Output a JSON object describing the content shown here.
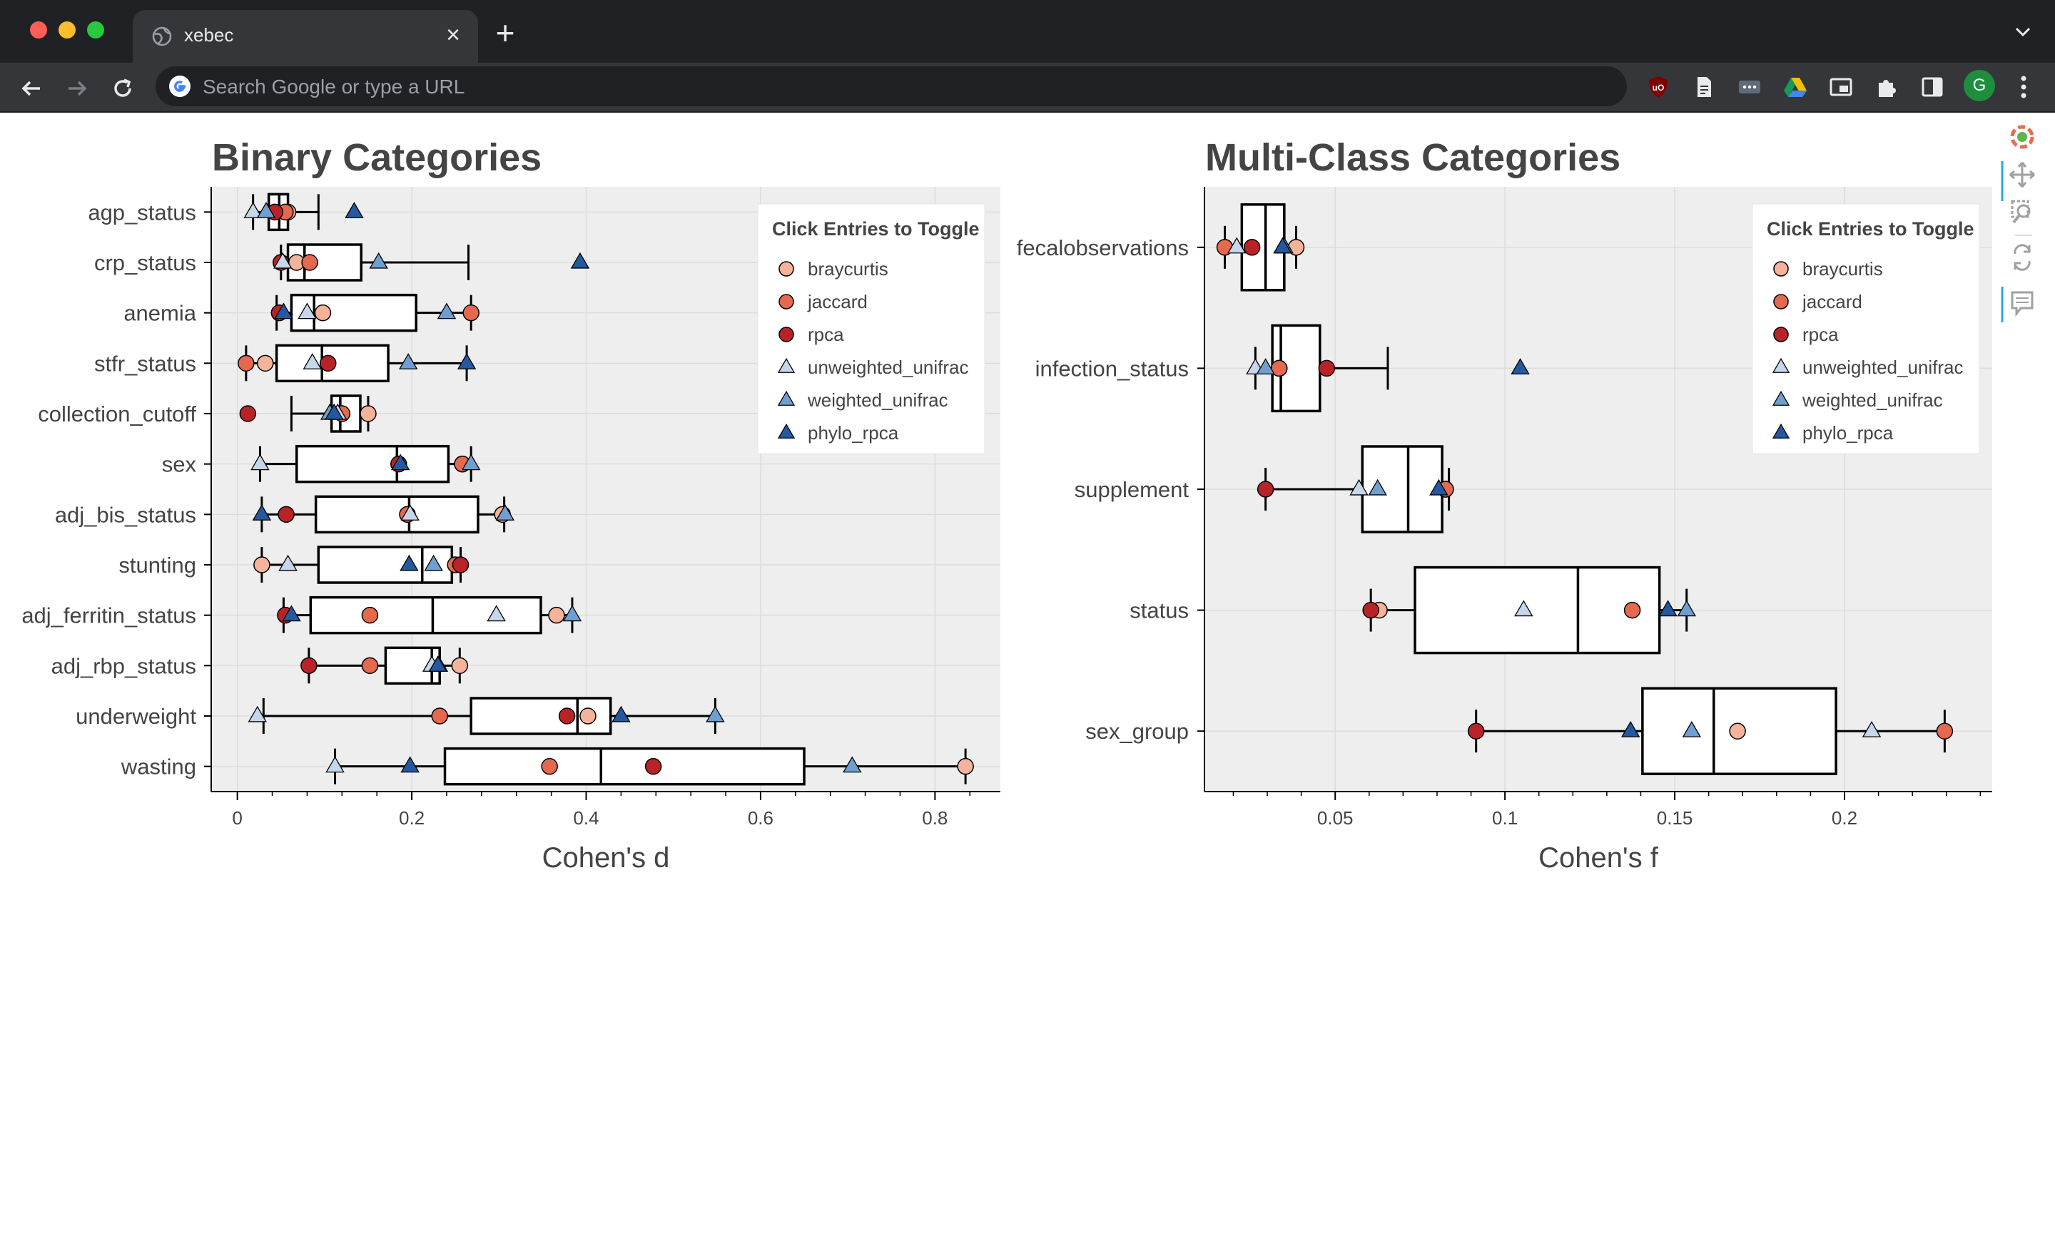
{
  "browser": {
    "tab_title": "xebec",
    "tab_close": "×",
    "new_tab": "+",
    "omnibox_placeholder": "Search Google or type a URL",
    "profile_initial": "G"
  },
  "legend_title": "Click Entries to Toggle",
  "legend_entries": [
    {
      "name": "braycurtis",
      "marker": "circle",
      "color": "#f4b39a"
    },
    {
      "name": "jaccard",
      "marker": "circle",
      "color": "#e5694f"
    },
    {
      "name": "rpca",
      "marker": "circle",
      "color": "#b92327"
    },
    {
      "name": "unweighted_unifrac",
      "marker": "triangle",
      "color": "#c6d6eb"
    },
    {
      "name": "weighted_unifrac",
      "marker": "triangle",
      "color": "#6f9fd0"
    },
    {
      "name": "phylo_rpca",
      "marker": "triangle",
      "color": "#24589f"
    }
  ],
  "chart_data": [
    {
      "type": "box",
      "title": "Binary Categories",
      "xlabel": "Cohen's d",
      "xlim": [
        -0.03,
        0.875
      ],
      "xticks": [
        0,
        0.2,
        0.4,
        0.6,
        0.8
      ],
      "xtick_labels": [
        "0",
        "0.2",
        "0.4",
        "0.6",
        "0.8"
      ],
      "grid": true,
      "legend_position": "top-right",
      "categories": [
        "agp_status",
        "crp_status",
        "anemia",
        "stfr_status",
        "collection_cutoff",
        "sex",
        "adj_bis_status",
        "stunting",
        "adj_ferritin_status",
        "adj_rbp_status",
        "underweight",
        "wasting"
      ],
      "boxes": [
        {
          "q1": 0.036,
          "median": 0.048,
          "q3": 0.058,
          "wlo": 0.018,
          "whi": 0.093
        },
        {
          "q1": 0.058,
          "median": 0.077,
          "q3": 0.142,
          "wlo": 0.05,
          "whi": 0.265
        },
        {
          "q1": 0.062,
          "median": 0.088,
          "q3": 0.205,
          "wlo": 0.045,
          "whi": 0.268
        },
        {
          "q1": 0.045,
          "median": 0.097,
          "q3": 0.173,
          "wlo": 0.01,
          "whi": 0.263
        },
        {
          "q1": 0.108,
          "median": 0.118,
          "q3": 0.141,
          "wlo": 0.062,
          "whi": 0.15
        },
        {
          "q1": 0.068,
          "median": 0.183,
          "q3": 0.242,
          "wlo": 0.026,
          "whi": 0.268
        },
        {
          "q1": 0.09,
          "median": 0.197,
          "q3": 0.276,
          "wlo": 0.028,
          "whi": 0.306
        },
        {
          "q1": 0.093,
          "median": 0.212,
          "q3": 0.246,
          "wlo": 0.028,
          "whi": 0.256
        },
        {
          "q1": 0.084,
          "median": 0.224,
          "q3": 0.348,
          "wlo": 0.053,
          "whi": 0.384
        },
        {
          "q1": 0.17,
          "median": 0.223,
          "q3": 0.232,
          "wlo": 0.082,
          "whi": 0.255
        },
        {
          "q1": 0.268,
          "median": 0.39,
          "q3": 0.428,
          "wlo": 0.03,
          "whi": 0.548
        },
        {
          "q1": 0.238,
          "median": 0.417,
          "q3": 0.65,
          "wlo": 0.112,
          "whi": 0.835
        }
      ],
      "series": [
        {
          "name": "braycurtis",
          "values": [
            0.058,
            0.068,
            0.098,
            0.032,
            0.15,
            0.258,
            0.304,
            0.028,
            0.366,
            0.255,
            0.402,
            0.835
          ]
        },
        {
          "name": "jaccard",
          "values": [
            0.055,
            0.083,
            0.268,
            0.01,
            0.12,
            0.258,
            0.195,
            0.25,
            0.152,
            0.152,
            0.232,
            0.358
          ]
        },
        {
          "name": "rpca",
          "values": [
            0.043,
            0.05,
            0.048,
            0.104,
            0.012,
            0.185,
            0.056,
            0.256,
            0.055,
            0.082,
            0.378,
            0.477
          ]
        },
        {
          "name": "unweighted_unifrac",
          "values": [
            0.018,
            0.052,
            0.08,
            0.086,
            0.115,
            0.026,
            0.198,
            0.058,
            0.297,
            0.223,
            0.023,
            0.112
          ]
        },
        {
          "name": "weighted_unifrac",
          "values": [
            0.033,
            0.162,
            0.24,
            0.196,
            0.106,
            0.268,
            0.307,
            0.225,
            0.384,
            0.231,
            0.548,
            0.705
          ]
        },
        {
          "name": "phylo_rpca",
          "values": [
            0.134,
            0.393,
            0.053,
            0.263,
            0.111,
            0.187,
            0.028,
            0.197,
            0.062,
            0.23,
            0.44,
            0.198
          ]
        }
      ]
    },
    {
      "type": "box",
      "title": "Multi-Class Categories",
      "xlabel": "Cohen's f",
      "xlim": [
        0.0115,
        0.2435
      ],
      "xticks": [
        0.05,
        0.1,
        0.15,
        0.2
      ],
      "xtick_labels": [
        "0.05",
        "0.1",
        "0.15",
        "0.2"
      ],
      "grid": true,
      "legend_position": "top-right",
      "categories": [
        "fecalobservations",
        "infection_status",
        "supplement",
        "status",
        "sex_group"
      ],
      "boxes": [
        {
          "q1": 0.0225,
          "median": 0.0295,
          "q3": 0.035,
          "wlo": 0.0175,
          "whi": 0.0385
        },
        {
          "q1": 0.0315,
          "median": 0.034,
          "q3": 0.0455,
          "wlo": 0.0265,
          "whi": 0.0655
        },
        {
          "q1": 0.058,
          "median": 0.0715,
          "q3": 0.0815,
          "wlo": 0.0295,
          "whi": 0.0835
        },
        {
          "q1": 0.0735,
          "median": 0.1215,
          "q3": 0.1455,
          "wlo": 0.0605,
          "whi": 0.1535
        },
        {
          "q1": 0.1405,
          "median": 0.1615,
          "q3": 0.1975,
          "wlo": 0.0915,
          "whi": 0.2295
        }
      ],
      "series": [
        {
          "name": "braycurtis",
          "values": [
            0.0385,
            0.0335,
            0.0825,
            0.063,
            0.1685
          ]
        },
        {
          "name": "jaccard",
          "values": [
            0.0175,
            0.0335,
            0.0825,
            0.1375,
            0.2295
          ]
        },
        {
          "name": "rpca",
          "values": [
            0.0255,
            0.0475,
            0.0295,
            0.0605,
            0.0915
          ]
        },
        {
          "name": "unweighted_unifrac",
          "values": [
            0.021,
            0.0265,
            0.057,
            0.1055,
            0.208
          ]
        },
        {
          "name": "weighted_unifrac",
          "values": [
            0.035,
            0.0295,
            0.0625,
            0.1535,
            0.155
          ]
        },
        {
          "name": "phylo_rpca",
          "values": [
            0.0345,
            0.1045,
            0.0805,
            0.148,
            0.137
          ]
        }
      ]
    }
  ]
}
